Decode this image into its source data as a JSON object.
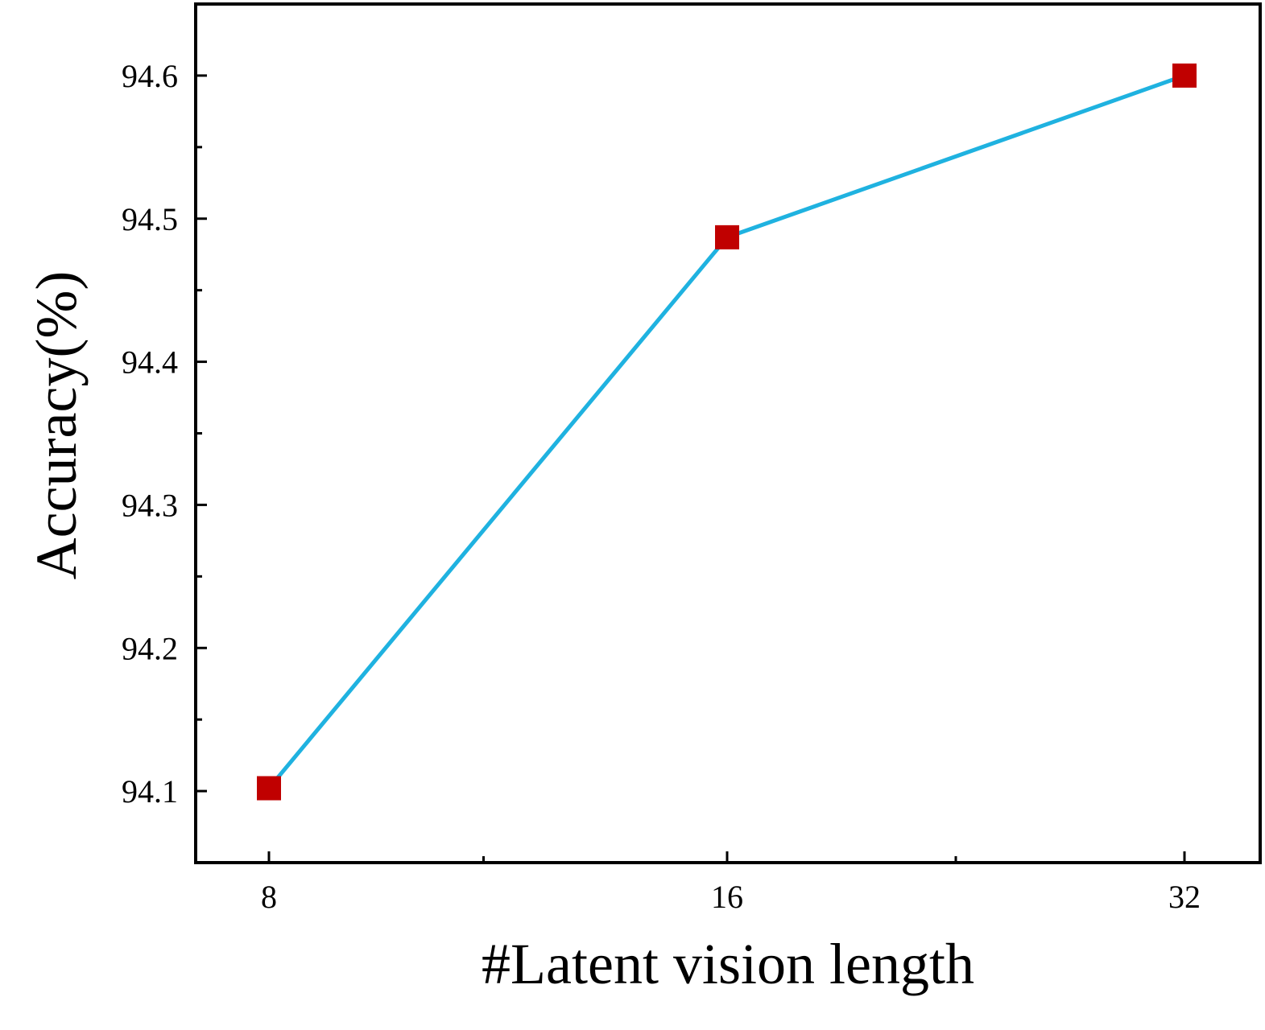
{
  "chart_data": {
    "type": "line",
    "title": "",
    "xlabel": "#Latent vision length",
    "ylabel": "Accuracy(%)",
    "x": [
      "8",
      "16",
      "32"
    ],
    "xlim": [
      0,
      2
    ],
    "ylim": [
      94.05,
      94.65
    ],
    "yticks": [
      "94.1",
      "94.2",
      "94.3",
      "94.4",
      "94.5",
      "94.6"
    ],
    "grid": false,
    "legend": "none",
    "series": [
      {
        "values": [
          94.102,
          94.487,
          94.6
        ],
        "color": "#1fb2e0",
        "marker": "square",
        "marker_color": "#c00000"
      }
    ]
  }
}
